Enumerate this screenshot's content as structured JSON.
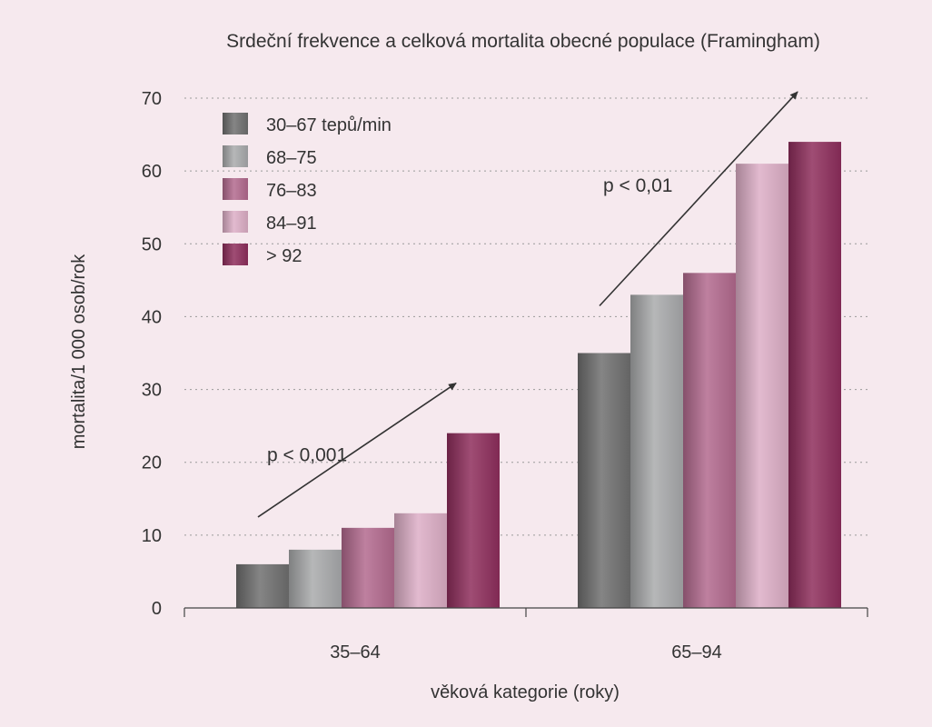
{
  "chart_data": {
    "type": "bar",
    "title": "Srdeční frekvence a celková mortalita obecné populace (Framingham)",
    "xlabel": "věková kategorie (roky)",
    "ylabel": "mortalita/1 000 osob/rok",
    "ylim": [
      0,
      70
    ],
    "yticks": [
      "0",
      "10",
      "20",
      "30",
      "40",
      "50",
      "60",
      "70"
    ],
    "grid": "horizontal dotted",
    "legend_position": "top-left",
    "categories": [
      "35–64",
      "65–94"
    ],
    "series": [
      {
        "name": "30–67 tepů/min",
        "values": [
          6,
          35
        ],
        "color": "#6f6f6f"
      },
      {
        "name": "68–75",
        "values": [
          8,
          43
        ],
        "color": "#a9aaac"
      },
      {
        "name": "76–83",
        "values": [
          11,
          46
        ],
        "color": "#b36a8e"
      },
      {
        "name": "84–91",
        "values": [
          13,
          61
        ],
        "color": "#ddaec6"
      },
      {
        "name": "> 92",
        "values": [
          24,
          64
        ],
        "color": "#8e2d5c"
      }
    ],
    "annotations": [
      {
        "category": "35–64",
        "text": "p < 0,001"
      },
      {
        "category": "65–94",
        "text": "p < 0,01"
      }
    ]
  }
}
